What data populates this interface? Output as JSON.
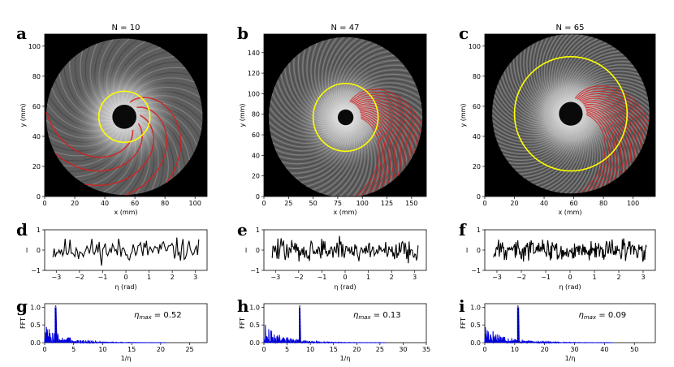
{
  "figure": {
    "panel_letters": [
      "a",
      "b",
      "c",
      "d",
      "e",
      "f",
      "g",
      "h",
      "i"
    ]
  },
  "chart_data": [
    {
      "panel": "a",
      "type": "heatmap",
      "title": "N = 10",
      "xlabel": "x (mm)",
      "ylabel": "y (mm)",
      "xlim": [
        0,
        108
      ],
      "ylim": [
        0,
        108
      ],
      "xticks": [
        0,
        20,
        40,
        60,
        80,
        100
      ],
      "yticks": [
        0,
        20,
        40,
        60,
        80,
        100
      ],
      "overlay": {
        "circle_color": "#ffff00",
        "spiral_color": "#d42020",
        "num_arms": 10
      },
      "center": [
        53,
        53
      ],
      "circle_radius": 17,
      "disk_radius": 52
    },
    {
      "panel": "b",
      "type": "heatmap",
      "title": "N = 47",
      "xlabel": "x (mm)",
      "ylabel": "y (mm)",
      "xlim": [
        0,
        165
      ],
      "ylim": [
        0,
        158
      ],
      "xticks": [
        0,
        25,
        50,
        75,
        100,
        125,
        150
      ],
      "yticks": [
        0,
        20,
        40,
        60,
        80,
        100,
        120,
        140
      ],
      "overlay": {
        "circle_color": "#ffff00",
        "spiral_color": "#d42020",
        "num_arms": 47
      },
      "center": [
        83,
        77
      ],
      "circle_radius": 33,
      "disk_radius": 78
    },
    {
      "panel": "c",
      "type": "heatmap",
      "title": "N = 65",
      "xlabel": "x (mm)",
      "ylabel": "y (mm)",
      "xlim": [
        0,
        115
      ],
      "ylim": [
        0,
        108
      ],
      "xticks": [
        0,
        20,
        40,
        60,
        80,
        100
      ],
      "yticks": [
        0,
        20,
        40,
        60,
        80,
        100
      ],
      "overlay": {
        "circle_color": "#ffff00",
        "spiral_color": "#d42020",
        "num_arms": 65
      },
      "center": [
        58,
        55
      ],
      "circle_radius": 38,
      "disk_radius": 53
    },
    {
      "panel": "d",
      "type": "line",
      "xlabel": "η (rad)",
      "ylabel": "I",
      "xlim": [
        -3.5,
        3.5
      ],
      "ylim": [
        -1,
        1
      ],
      "xticks": [
        -3,
        -2,
        -1,
        0,
        1,
        2,
        3
      ],
      "yticks": [
        -1,
        0,
        1
      ],
      "series": [
        {
          "color": "#000000",
          "num_points": 121,
          "seed": 11,
          "amplitude": 0.35
        }
      ]
    },
    {
      "panel": "e",
      "type": "line",
      "xlabel": "η (rad)",
      "ylabel": "I",
      "xlim": [
        -3.5,
        3.5
      ],
      "ylim": [
        -1,
        1
      ],
      "xticks": [
        -3,
        -2,
        -1,
        0,
        1,
        2,
        3
      ],
      "yticks": [
        -1,
        0,
        1
      ],
      "series": [
        {
          "color": "#000000",
          "num_points": 181,
          "seed": 47,
          "amplitude": 0.35
        }
      ]
    },
    {
      "panel": "f",
      "type": "line",
      "xlabel": "η (rad)",
      "ylabel": "I",
      "xlim": [
        -3.5,
        3.5
      ],
      "ylim": [
        -1,
        1
      ],
      "xticks": [
        -3,
        -2,
        -1,
        0,
        1,
        2,
        3
      ],
      "yticks": [
        -1,
        0,
        1
      ],
      "series": [
        {
          "color": "#000000",
          "num_points": 241,
          "seed": 65,
          "amplitude": 0.3
        }
      ]
    },
    {
      "panel": "g",
      "type": "line",
      "xlabel": "1/η",
      "ylabel": "FFT",
      "xlim": [
        0,
        28
      ],
      "ylim": [
        0,
        1.1
      ],
      "xticks": [
        0,
        5,
        10,
        15,
        20,
        25
      ],
      "yticks": [
        0.0,
        0.5,
        1.0
      ],
      "annotation": "η_max = 0.52",
      "annotation_main": "η",
      "annotation_sub": "max",
      "annotation_rest": " = 0.52",
      "peak_x": 1.92,
      "series": [
        {
          "color": "#0000dd",
          "num_points": 140,
          "seed": 3
        }
      ]
    },
    {
      "panel": "h",
      "type": "line",
      "xlabel": "1/η",
      "ylabel": "FFT",
      "xlim": [
        0,
        35
      ],
      "ylim": [
        0,
        1.1
      ],
      "xticks": [
        0,
        5,
        10,
        15,
        20,
        25,
        30,
        35
      ],
      "yticks": [
        0.0,
        0.5,
        1.0
      ],
      "annotation": "η_max = 0.13",
      "annotation_main": "η",
      "annotation_sub": "max",
      "annotation_rest": " = 0.13",
      "peak_x": 7.7,
      "series": [
        {
          "color": "#0000dd",
          "num_points": 180,
          "seed": 9
        }
      ]
    },
    {
      "panel": "i",
      "type": "line",
      "xlabel": "1/η",
      "ylabel": "FFT",
      "xlim": [
        0,
        57
      ],
      "ylim": [
        0,
        1.1
      ],
      "xticks": [
        0,
        10,
        20,
        30,
        40,
        50
      ],
      "yticks": [
        0.0,
        0.5,
        1.0
      ],
      "annotation": "η_max = 0.09",
      "annotation_main": "η",
      "annotation_sub": "max",
      "annotation_rest": " = 0.09",
      "peak_x": 11.1,
      "series": [
        {
          "color": "#0000dd",
          "num_points": 220,
          "seed": 17
        }
      ]
    }
  ]
}
